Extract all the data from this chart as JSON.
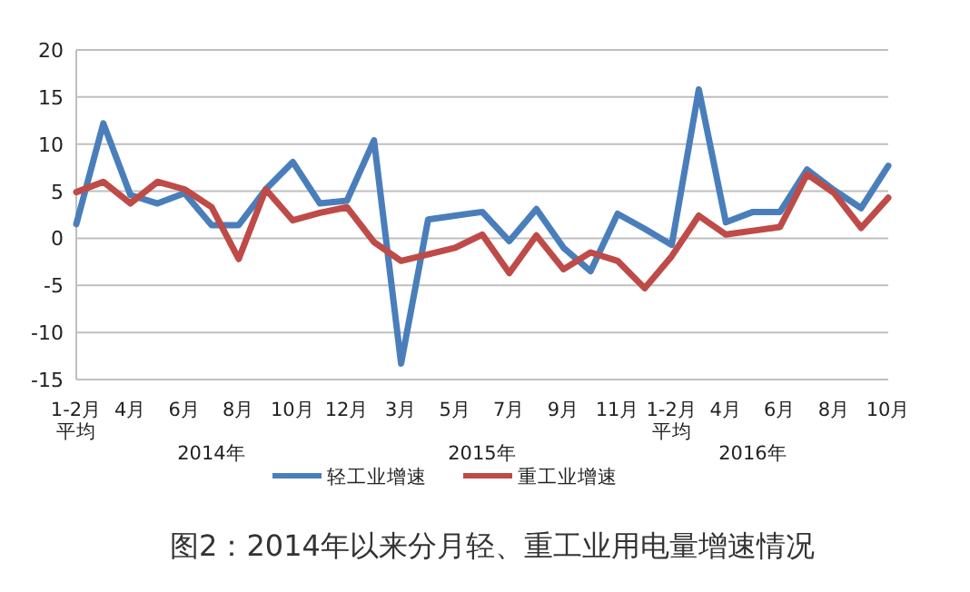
{
  "chart_data": {
    "type": "line",
    "categories": [
      "1-2月平均",
      null,
      "4月",
      null,
      "6月",
      null,
      "8月",
      null,
      "10月",
      null,
      "12月",
      null,
      "3月",
      null,
      "5月",
      null,
      "7月",
      null,
      "9月",
      null,
      "11月",
      null,
      "1-2月平均",
      null,
      "4月",
      null,
      "6月",
      null,
      "8月",
      null,
      "10月"
    ],
    "series": [
      {
        "name": "轻工业增速",
        "color": "#4a7ebb",
        "values": [
          1.5,
          12.2,
          4.6,
          3.7,
          4.8,
          1.4,
          1.4,
          5.2,
          8.1,
          3.7,
          4.0,
          10.4,
          -13.3,
          2.0,
          2.4,
          2.8,
          -0.3,
          3.1,
          -1.0,
          -3.5,
          2.6,
          1.0,
          -0.7,
          15.8,
          1.7,
          2.8,
          2.8,
          7.3,
          5.1,
          3.2,
          7.7
        ]
      },
      {
        "name": "重工业增速",
        "color": "#be4b48",
        "values": [
          4.9,
          6.0,
          3.7,
          6.0,
          5.2,
          3.3,
          -2.2,
          5.2,
          1.9,
          2.7,
          3.3,
          -0.4,
          -2.4,
          -1.7,
          -1.0,
          0.4,
          -3.7,
          0.3,
          -3.3,
          -1.5,
          -2.4,
          -5.3,
          -1.9,
          2.4,
          0.4,
          0.8,
          1.2,
          6.8,
          4.8,
          1.1,
          4.3
        ]
      }
    ],
    "ylim": [
      -15,
      20
    ],
    "yticks": [
      -15,
      -10,
      -5,
      0,
      5,
      10,
      15,
      20
    ],
    "grid": "y",
    "legend": "bottom",
    "marker": "none",
    "line_style": "solid",
    "annotations": [
      "2014年",
      "2015年",
      "2016年",
      "图2：2014年以来分月轻、重工业用电量增速情况"
    ]
  }
}
